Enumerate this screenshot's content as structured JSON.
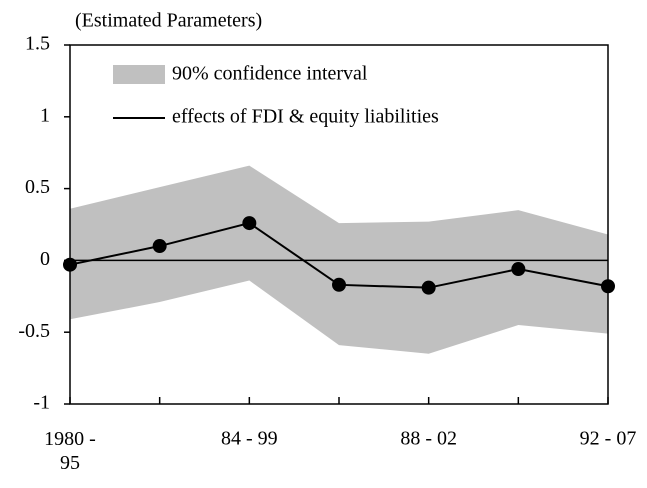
{
  "chart_data": {
    "type": "line-band",
    "y_label": "(Estimated Parameters)",
    "categories": [
      "1980 -\n95",
      null,
      "84 - 99",
      null,
      "88 - 02",
      null,
      "92 - 07"
    ],
    "series": [
      {
        "name": "90% confidence interval",
        "color": "#c0c0c0",
        "upper": [
          0.36,
          0.51,
          0.66,
          0.26,
          0.27,
          0.35,
          0.18
        ],
        "lower": [
          -0.41,
          -0.29,
          -0.14,
          -0.59,
          -0.65,
          -0.45,
          -0.51
        ]
      },
      {
        "name": "effects of FDI & equity liabilities",
        "color": "#000000",
        "values": [
          -0.03,
          0.1,
          0.26,
          -0.17,
          -0.19,
          -0.06,
          -0.18
        ]
      }
    ],
    "ylim": [
      -1,
      1.5
    ],
    "yticks": [
      -1,
      -0.5,
      0,
      0.5,
      1,
      1.5
    ],
    "zero_line": true,
    "legend": "top-left"
  }
}
